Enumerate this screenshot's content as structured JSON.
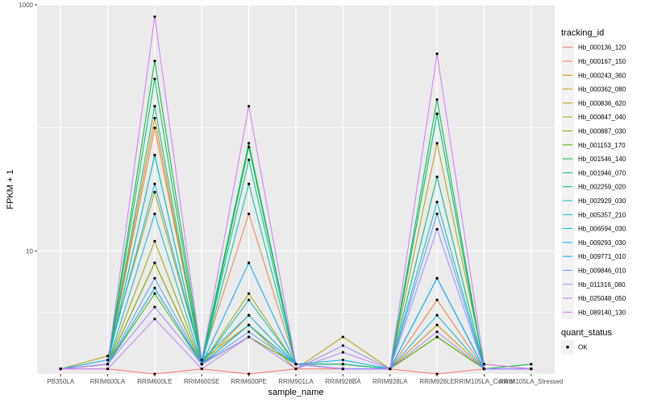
{
  "chart_data": {
    "type": "line",
    "xlabel": "sample_name",
    "ylabel": "FPKM + 1",
    "y_scale": "log10",
    "ylim": [
      1,
      1000
    ],
    "y_ticks": [
      10,
      1000
    ],
    "y_tick_labels": [
      "10",
      "1000"
    ],
    "grid": true,
    "legend_position": "right",
    "categories": [
      "PB350LA",
      "RRIM600LA",
      "RRIM600LE",
      "RRIM600SE",
      "RRIM600PE",
      "RRIM901LA",
      "RRIM928BA",
      "RRIM928LA",
      "RRIM928LE",
      "RRIM105LA_Control",
      "RRIM105LA_Stressed"
    ],
    "legend_title": "tracking_id",
    "series": [
      {
        "name": "Hb_000136_120",
        "color": "#F8766D",
        "values": [
          1.1,
          1.1,
          1.0,
          1.1,
          1.0,
          1.1,
          1.1,
          1.1,
          1.0,
          1.1,
          1.1
        ]
      },
      {
        "name": "Hb_000167_150",
        "color": "#EE8043",
        "values": [
          1.1,
          1.2,
          100,
          1.3,
          20,
          1.2,
          1.1,
          1.1,
          4.0,
          1.1,
          1.1
        ]
      },
      {
        "name": "Hb_000243_360",
        "color": "#E08B00",
        "values": [
          1.1,
          1.2,
          120,
          1.2,
          3.0,
          1.2,
          1.2,
          1.1,
          2.0,
          1.1,
          1.1
        ]
      },
      {
        "name": "Hb_000362_080",
        "color": "#CC9600",
        "values": [
          1.1,
          1.2,
          8.0,
          1.2,
          2.0,
          1.2,
          1.1,
          1.1,
          2.5,
          1.1,
          1.1
        ]
      },
      {
        "name": "Hb_000836_620",
        "color": "#B79F00",
        "values": [
          1.1,
          1.4,
          30,
          1.3,
          2.5,
          1.1,
          2.0,
          1.1,
          75,
          1.2,
          1.1
        ]
      },
      {
        "name": "Hb_000847_040",
        "color": "#9DA700",
        "values": [
          1.1,
          1.2,
          12,
          1.2,
          4.5,
          1.2,
          1.2,
          1.1,
          40,
          1.1,
          1.1
        ]
      },
      {
        "name": "Hb_000887_030",
        "color": "#7CAE00",
        "values": [
          1.1,
          1.2,
          8.0,
          1.2,
          2.5,
          1.2,
          1.1,
          1.1,
          2.0,
          1.1,
          1.1
        ]
      },
      {
        "name": "Hb_001153_170",
        "color": "#49B500",
        "values": [
          1.1,
          1.2,
          4.5,
          1.2,
          2.0,
          1.2,
          1.1,
          1.1,
          2.0,
          1.1,
          1.1
        ]
      },
      {
        "name": "Hb_001546_140",
        "color": "#00BA38",
        "values": [
          1.1,
          1.2,
          350,
          1.3,
          75,
          1.2,
          1.1,
          1.1,
          170,
          1.1,
          1.2
        ]
      },
      {
        "name": "Hb_001946_070",
        "color": "#00BE67",
        "values": [
          1.1,
          1.2,
          250,
          1.2,
          70,
          1.2,
          1.2,
          1.1,
          130,
          1.1,
          1.1
        ]
      },
      {
        "name": "Hb_002259_020",
        "color": "#00C08B",
        "values": [
          1.1,
          1.2,
          150,
          1.2,
          55,
          1.2,
          1.2,
          1.1,
          130,
          1.1,
          1.1
        ]
      },
      {
        "name": "Hb_002929_030",
        "color": "#00C1AA",
        "values": [
          1.1,
          1.2,
          60,
          1.2,
          35,
          1.2,
          1.1,
          1.1,
          40,
          1.1,
          1.1
        ]
      },
      {
        "name": "Hb_005357_210",
        "color": "#00BFC4",
        "values": [
          1.1,
          1.2,
          60,
          1.2,
          4.0,
          1.2,
          1.1,
          1.1,
          25,
          1.1,
          1.1
        ]
      },
      {
        "name": "Hb_006594_030",
        "color": "#00BBDC",
        "values": [
          1.1,
          1.2,
          20,
          1.2,
          2.5,
          1.2,
          1.1,
          1.1,
          3.0,
          1.1,
          1.1
        ]
      },
      {
        "name": "Hb_009293_030",
        "color": "#00B4EF",
        "values": [
          1.1,
          1.3,
          35,
          1.3,
          3.0,
          1.2,
          1.3,
          1.1,
          6.0,
          1.1,
          1.1
        ]
      },
      {
        "name": "Hb_009771_010",
        "color": "#00A9FF",
        "values": [
          1.1,
          1.2,
          5.0,
          1.2,
          8.0,
          1.2,
          1.1,
          1.1,
          6.0,
          1.1,
          1.1
        ]
      },
      {
        "name": "Hb_009846_010",
        "color": "#619CFF",
        "values": [
          1.1,
          1.2,
          6.0,
          1.2,
          2.2,
          1.2,
          1.1,
          1.1,
          20,
          1.1,
          1.1
        ]
      },
      {
        "name": "Hb_011316_080",
        "color": "#9590FF",
        "values": [
          1.1,
          1.2,
          3.5,
          1.2,
          2.0,
          1.1,
          1.7,
          1.1,
          15,
          1.1,
          1.1
        ]
      },
      {
        "name": "Hb_025048_050",
        "color": "#B983FF",
        "values": [
          1.1,
          1.1,
          2.8,
          1.1,
          2.0,
          1.1,
          1.5,
          1.1,
          2.2,
          1.1,
          1.1
        ]
      },
      {
        "name": "Hb_089140_130",
        "color": "#D575FE",
        "values": [
          1.1,
          1.2,
          800,
          1.3,
          150,
          1.2,
          1.1,
          1.1,
          400,
          1.2,
          1.1
        ]
      }
    ],
    "shape_legend": {
      "title": "quant_status",
      "items": [
        {
          "label": "OK"
        }
      ]
    }
  }
}
